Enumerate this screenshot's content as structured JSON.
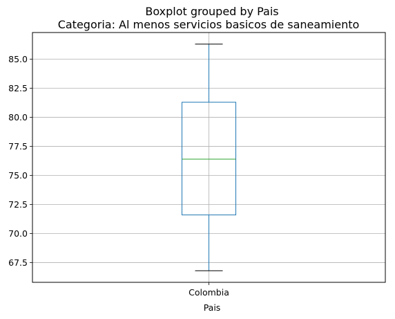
{
  "chart_data": {
    "type": "boxplot",
    "suptitle": "Boxplot grouped by Pais",
    "title": "Categoria: Al menos servicios basicos de saneamiento",
    "xlabel": "Pais",
    "ylabel": "",
    "categories": [
      "Colombia"
    ],
    "boxes": [
      {
        "category": "Colombia",
        "whisker_low": 66.8,
        "q1": 71.6,
        "median": 76.4,
        "q3": 81.3,
        "whisker_high": 86.3
      }
    ],
    "ylim": [
      65.8,
      87.3
    ],
    "yticks": [
      67.5,
      70.0,
      72.5,
      75.0,
      77.5,
      80.0,
      82.5,
      85.0
    ],
    "ytick_labels": [
      "67.5",
      "70.0",
      "72.5",
      "75.0",
      "77.5",
      "80.0",
      "82.5",
      "85.0"
    ],
    "grid": true,
    "colors": {
      "box": "#1f77b4",
      "median": "#2ca02c",
      "whisker": "#1f77b4",
      "cap": "#000000",
      "grid": "#b0b0b0"
    }
  }
}
